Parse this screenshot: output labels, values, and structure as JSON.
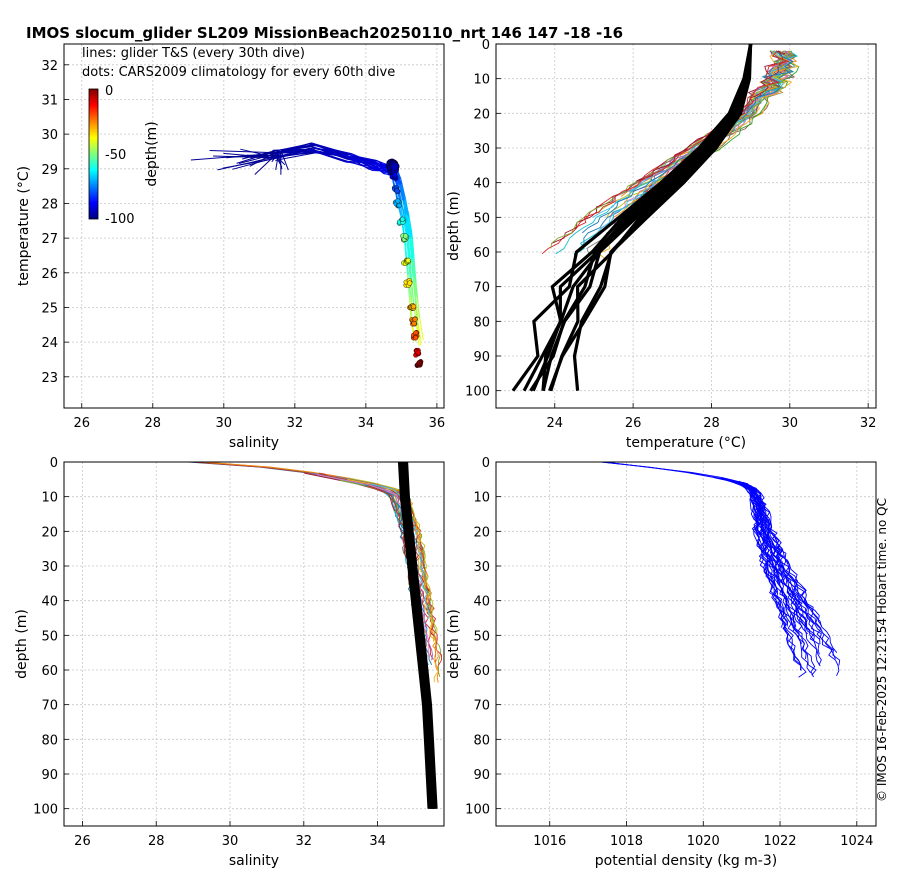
{
  "figure": {
    "title": "IMOS slocum_glider SL209 MissionBeach20250110_nrt 146  147  -18  -16",
    "side_note": "© IMOS 16-Feb-2025 12:21:54 Hobart time. no QC"
  },
  "colors": {
    "climatology": "#000000",
    "density": "#0000ff",
    "grid": "#c8c8c8"
  },
  "chart_data": [
    {
      "id": "ts",
      "type": "scatter",
      "xlabel": "salinity",
      "ylabel": "temperature (°C)",
      "xlim": [
        25.5,
        36.2
      ],
      "ylim": [
        22.1,
        32.6
      ],
      "xticks": [
        26,
        28,
        30,
        32,
        34,
        36
      ],
      "yticks": [
        23,
        24,
        25,
        26,
        27,
        28,
        29,
        30,
        31,
        32
      ],
      "grid": true,
      "annotations": [
        "lines: glider T&S (every 30th dive)",
        "dots: CARS2009 climatology for every 60th dive"
      ],
      "colorbar": {
        "label": "depth(m)",
        "ticks": [
          0,
          -50,
          -100
        ],
        "range": [
          -100,
          0
        ],
        "colormap": "jet"
      },
      "glider_profile": {
        "name": "glider T&S",
        "salinity": [
          29.0,
          31.5,
          32.5,
          33.5,
          34.2,
          34.6,
          34.8,
          34.9,
          35.0,
          35.1,
          35.2,
          35.25,
          35.3,
          35.35,
          35.4,
          35.5
        ],
        "temperature": [
          29.05,
          29.4,
          29.6,
          29.3,
          29.1,
          29.0,
          28.9,
          28.6,
          28.1,
          27.6,
          27.0,
          26.4,
          25.8,
          25.2,
          24.6,
          24.0
        ],
        "depth": [
          0,
          2,
          4,
          6,
          8,
          10,
          15,
          20,
          25,
          30,
          35,
          40,
          45,
          50,
          55,
          60
        ]
      },
      "climatology_points": {
        "name": "CARS2009 climatology",
        "salinity": [
          34.75,
          34.78,
          34.8,
          34.85,
          34.9,
          35.0,
          35.1,
          35.15,
          35.2,
          35.3,
          35.35,
          35.4,
          35.45,
          35.5
        ],
        "temperature": [
          29.1,
          29.0,
          28.8,
          28.4,
          28.0,
          27.5,
          27.0,
          26.3,
          25.7,
          25.0,
          24.6,
          24.2,
          23.7,
          23.4
        ],
        "depth": [
          0,
          5,
          10,
          20,
          30,
          40,
          50,
          60,
          65,
          70,
          75,
          80,
          90,
          100
        ]
      }
    },
    {
      "id": "temp",
      "type": "line",
      "xlabel": "temperature (°C)",
      "ylabel": "depth (m)",
      "xlim": [
        22.5,
        32.2
      ],
      "ylim": [
        0,
        105
      ],
      "y_reversed": true,
      "xticks": [
        24,
        26,
        28,
        30,
        32
      ],
      "yticks": [
        0,
        10,
        20,
        30,
        40,
        50,
        60,
        70,
        80,
        90,
        100
      ],
      "grid": true,
      "climatology": {
        "depth": [
          0,
          10,
          20,
          30,
          40,
          50,
          60,
          70,
          80,
          90,
          100
        ],
        "temperature": [
          29.0,
          28.9,
          28.6,
          27.9,
          27.0,
          26.0,
          25.1,
          24.6,
          24.3,
          24.0,
          23.6
        ]
      },
      "glider_typical": {
        "depth": [
          0,
          5,
          10,
          20,
          30,
          40,
          50,
          60
        ],
        "temperature": [
          29.5,
          29.7,
          29.5,
          29.0,
          27.8,
          26.6,
          25.4,
          24.5
        ]
      }
    },
    {
      "id": "sal",
      "type": "line",
      "xlabel": "salinity",
      "ylabel": "depth (m)",
      "xlim": [
        25.5,
        35.8
      ],
      "ylim": [
        0,
        105
      ],
      "y_reversed": true,
      "xticks": [
        26,
        28,
        30,
        32,
        34
      ],
      "yticks": [
        0,
        10,
        20,
        30,
        40,
        50,
        60,
        70,
        80,
        90,
        100
      ],
      "grid": true,
      "climatology": {
        "depth": [
          0,
          10,
          20,
          30,
          40,
          50,
          60,
          70,
          80,
          90,
          100
        ],
        "salinity": [
          34.7,
          34.75,
          34.85,
          34.95,
          35.05,
          35.15,
          35.25,
          35.35,
          35.4,
          35.45,
          35.5
        ]
      },
      "glider_typical": {
        "depth": [
          0,
          2,
          4,
          6,
          8,
          10,
          20,
          30,
          40,
          50,
          56
        ],
        "salinity": [
          29.0,
          31.5,
          32.6,
          33.6,
          34.3,
          34.6,
          34.9,
          35.05,
          35.2,
          35.35,
          35.45
        ]
      }
    },
    {
      "id": "dens",
      "type": "line",
      "xlabel": "potential density (kg m-3)",
      "ylabel": "depth (m)",
      "xlim": [
        1014.6,
        1024.5
      ],
      "ylim": [
        0,
        105
      ],
      "y_reversed": true,
      "xticks": [
        1016,
        1018,
        1020,
        1022,
        1024
      ],
      "yticks": [
        0,
        10,
        20,
        30,
        40,
        50,
        60,
        70,
        80,
        90,
        100
      ],
      "grid": true,
      "glider_typical": {
        "depth": [
          0,
          2,
          4,
          6,
          8,
          10,
          20,
          30,
          40,
          50,
          60
        ],
        "density": [
          1017.4,
          1019.0,
          1020.2,
          1021.0,
          1021.3,
          1021.4,
          1021.6,
          1021.9,
          1022.3,
          1022.7,
          1023.1
        ]
      }
    }
  ]
}
